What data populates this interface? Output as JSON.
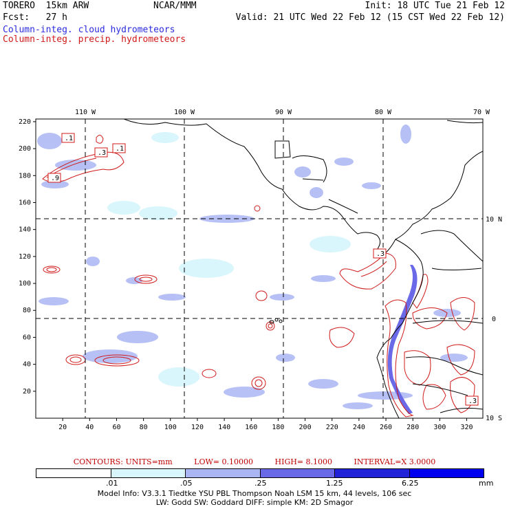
{
  "header": {
    "model": "TORERO  15km ARW",
    "center": "NCAR/MMM",
    "init": "Init: 18 UTC Tue 21 Feb 12",
    "fcst": "Fcst:   27 h",
    "valid": "Valid: 21 UTC Wed 22 Feb 12 (15 CST Wed 22 Feb 12)",
    "field1": "Column-integ. cloud hydrometeors",
    "field2": "Column-integ. precip. hydrometeors"
  },
  "colors": {
    "cloud": "#2a2ae0",
    "precip": "#d01818"
  },
  "map": {
    "top_lon_labels": [
      "110 W",
      "100 W",
      "90 W",
      "80 W",
      "70 W"
    ],
    "right_lat_labels": [
      "10 N",
      "0",
      "10 S"
    ],
    "x_ticks": [
      "20",
      "40",
      "60",
      "80",
      "100",
      "120",
      "140",
      "160",
      "180",
      "200",
      "220",
      "240",
      "260",
      "280",
      "300",
      "320"
    ],
    "y_ticks": [
      "20",
      "40",
      "60",
      "80",
      "100",
      "120",
      "140",
      "160",
      "180",
      "200",
      "220"
    ],
    "contour_box_labels": [
      ".1",
      ".3",
      ".1",
      ".9",
      ".3",
      ".3"
    ]
  },
  "contour_info": {
    "units": "CONTOURS:  UNITS=mm",
    "low": "LOW= 0.10000",
    "high": "HIGH=  8.1000",
    "interval": "INTERVAL=X  3.0000"
  },
  "colorbar": {
    "labels": [
      ".01",
      ".05",
      ".25",
      "1.25",
      "6.25"
    ],
    "unit": "mm",
    "colors": [
      "#ffffff",
      "#d8f6fc",
      "#aab6f4",
      "#6a6ae8",
      "#2222d8",
      "#0000f0"
    ]
  },
  "footer": {
    "line1": "Model Info: V3.3.1   Tiedtke YSU PBL   Thompson    Noah LSM  15 km,   44 levels,  106 sec",
    "line2": "LW: Godd SW: Goddard DIFF: simple KM: 2D Smagor"
  }
}
